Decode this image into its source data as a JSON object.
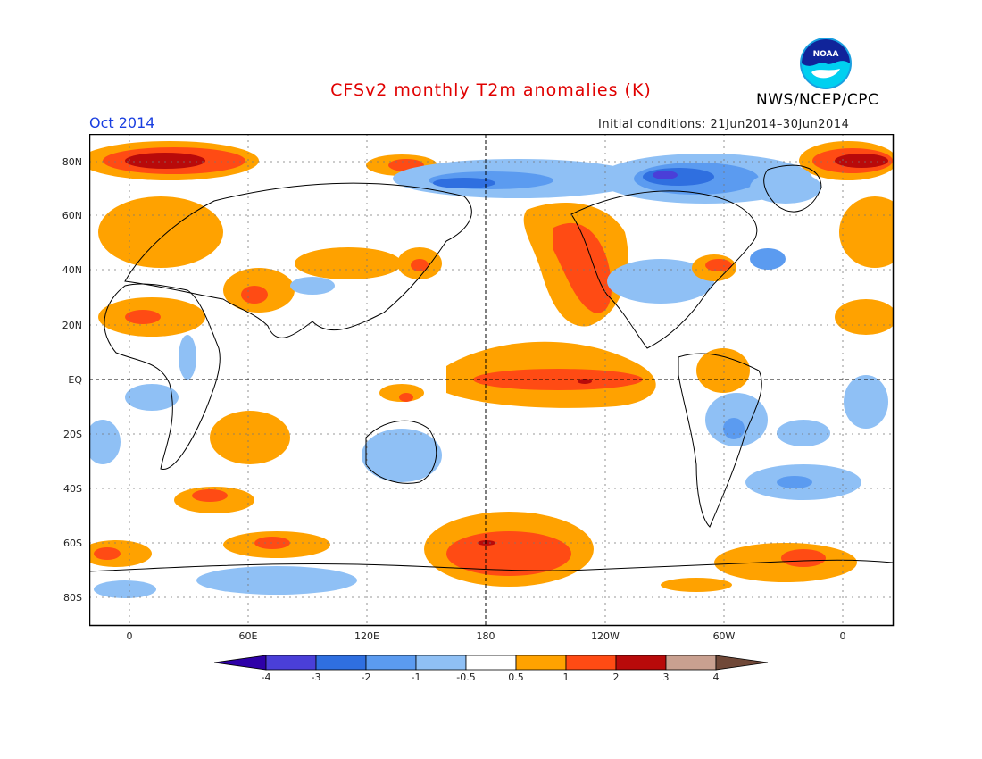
{
  "title": "CFSv2 monthly T2m anomalies (K)",
  "month": "Oct 2014",
  "initial_conditions": "Initial conditions: 21Jun2014–30Jun2014",
  "agency": "NWS/NCEP/CPC",
  "logo_text": "NOAA",
  "colors": {
    "title": "#e00000",
    "month": "#1a3fe0",
    "n4": "#2e00a8",
    "n3": "#4a3fd8",
    "n2": "#2f6fe0",
    "n1": "#5b9bf0",
    "n05": "#8fc0f5",
    "zero": "#ffffff",
    "p05": "#ffa200",
    "p1": "#ff4b14",
    "p2": "#b80a0a",
    "p3": "#c9a090",
    "p4": "#704838"
  },
  "lat_labels": [
    "80N",
    "60N",
    "40N",
    "20N",
    "EQ",
    "20S",
    "40S",
    "60S",
    "80S"
  ],
  "lon_labels": [
    "0",
    "60E",
    "120E",
    "180",
    "120W",
    "60W",
    "0"
  ],
  "colorbar_labels": [
    "-4",
    "-3",
    "-2",
    "-1",
    "-0.5",
    "0.5",
    "1",
    "2",
    "3",
    "4"
  ]
}
